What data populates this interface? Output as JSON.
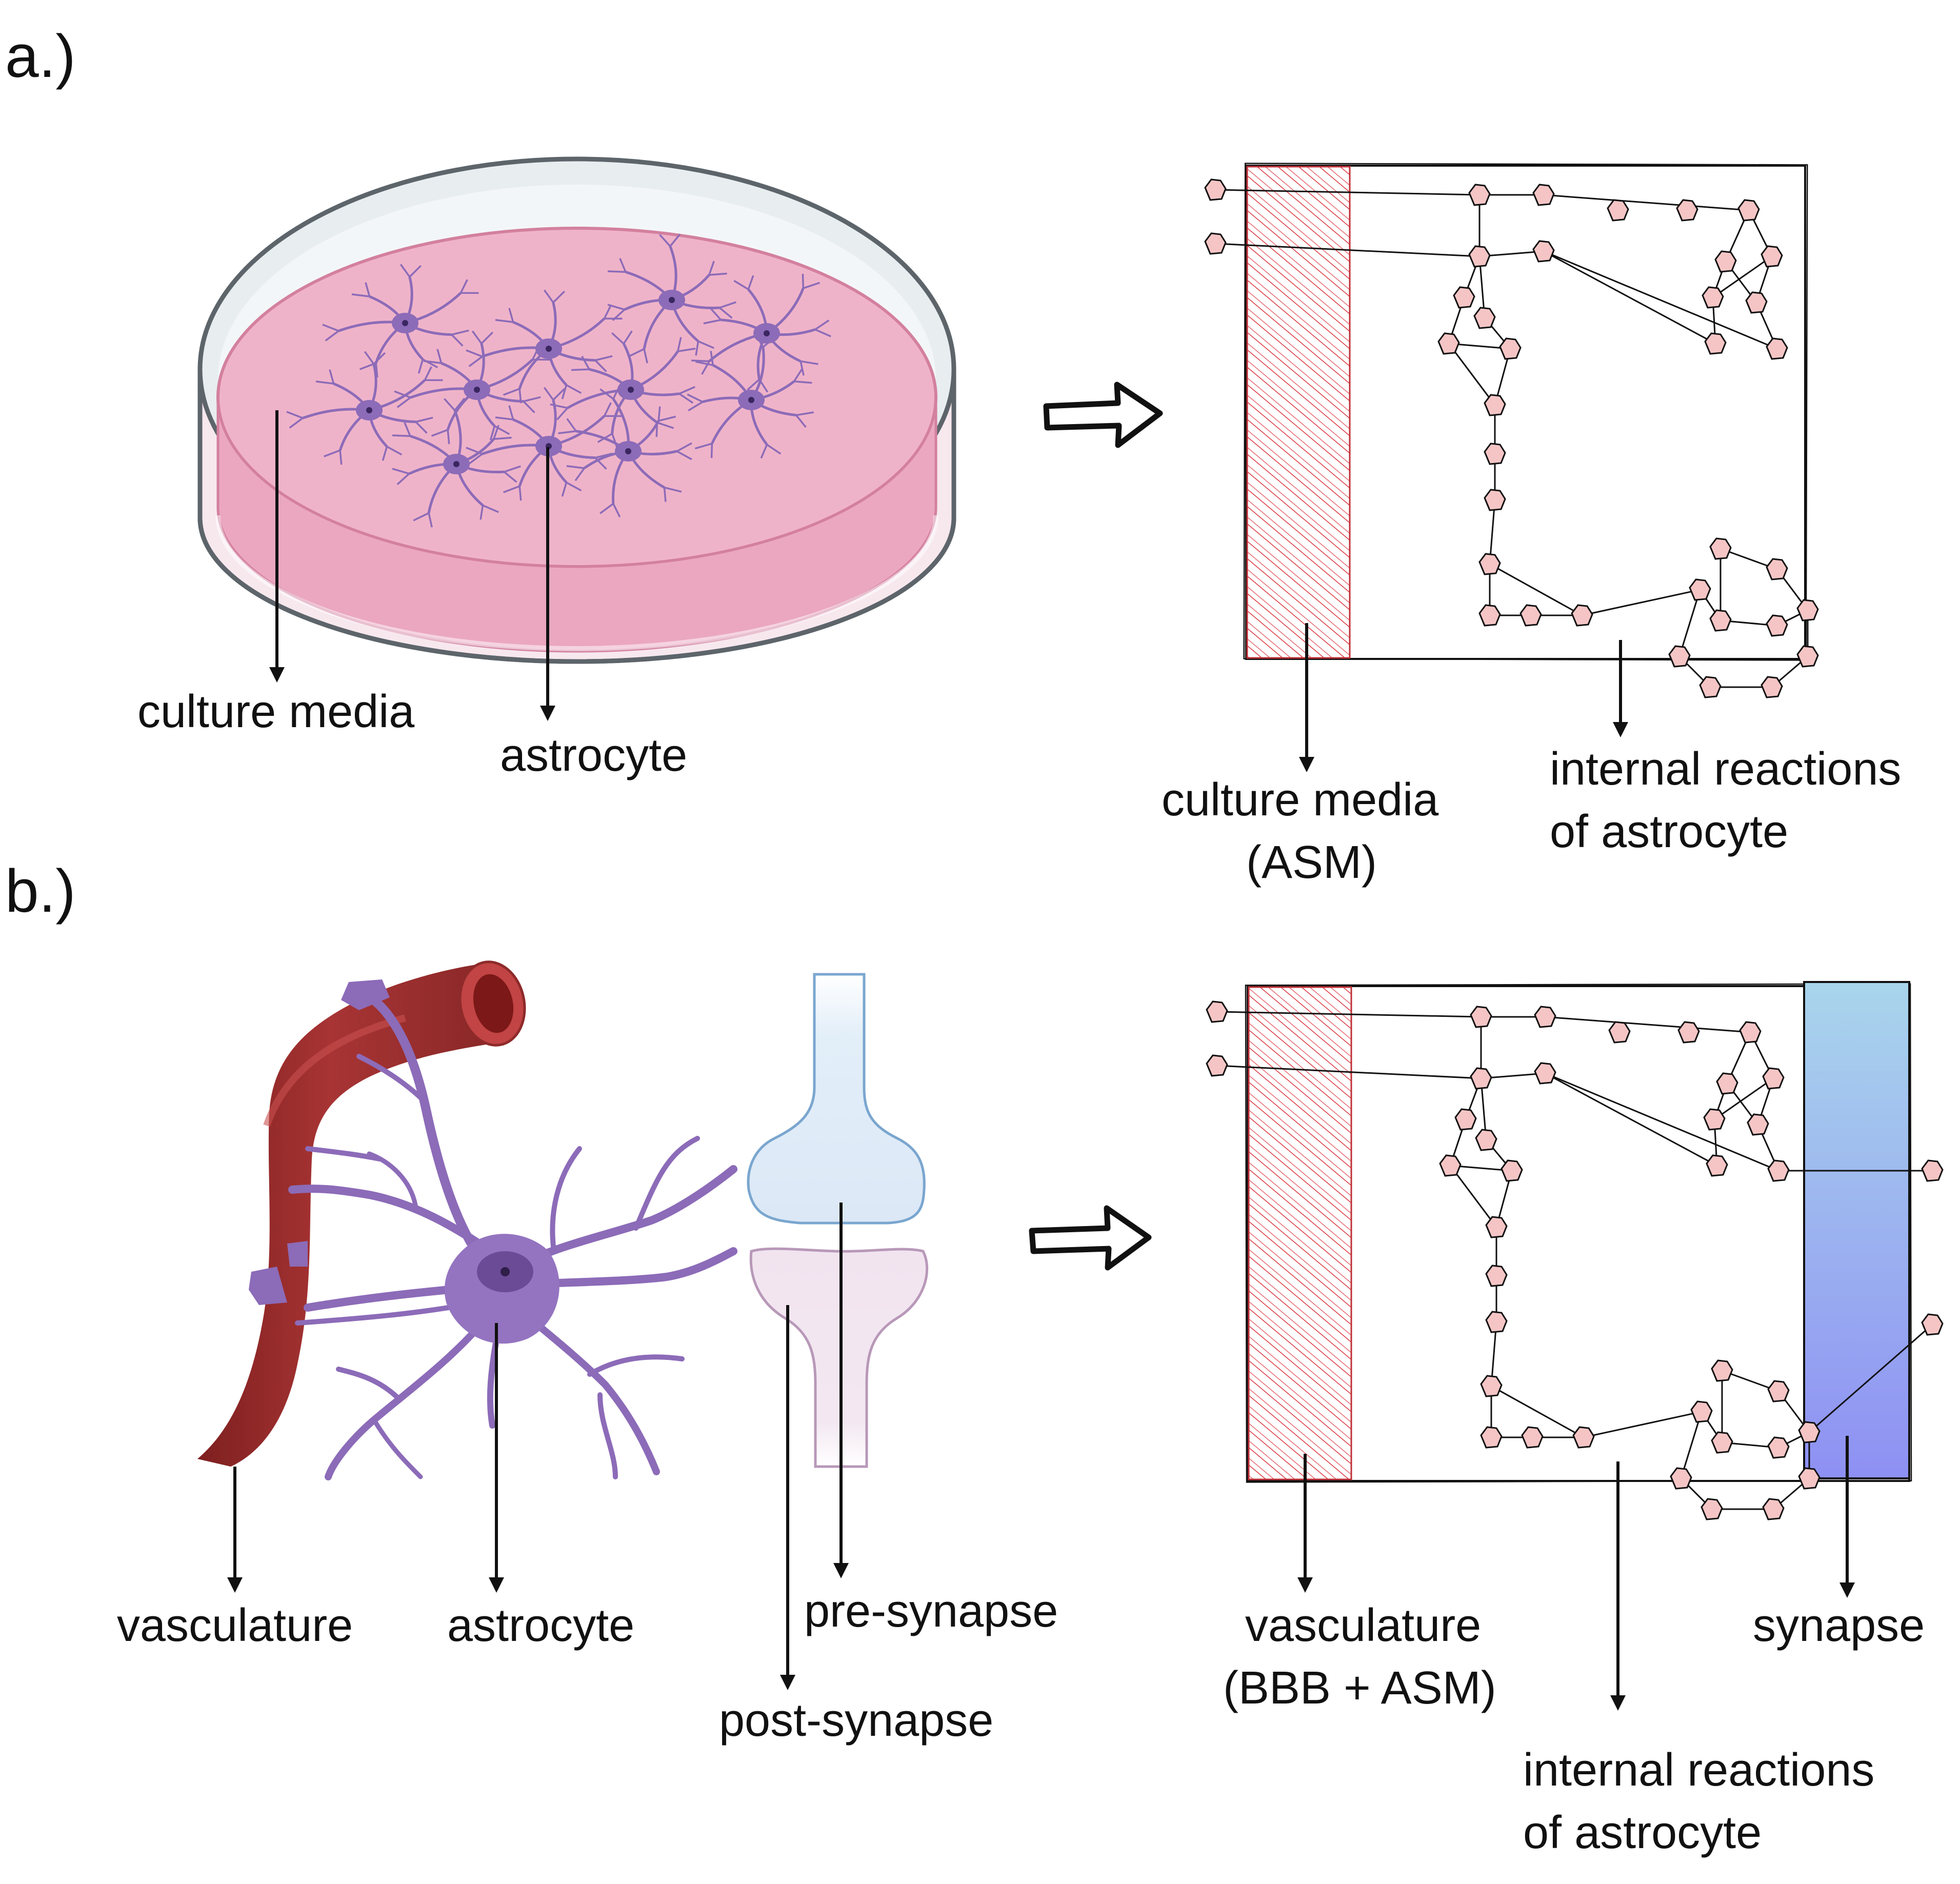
{
  "panel_a": {
    "letter": "a.)",
    "dish_labels": {
      "culture_media": "culture media",
      "astrocyte": "astrocyte"
    },
    "model_labels": {
      "culture_media_line1": "culture media",
      "culture_media_line2": "(ASM)",
      "internal_line1": "internal reactions",
      "internal_line2": "of astrocyte"
    }
  },
  "panel_b": {
    "letter": "b.)",
    "bio_labels": {
      "vasculature": "vasculature",
      "astrocyte": "astrocyte",
      "pre_synapse": "pre-synapse",
      "post_synapse": "post-synapse"
    },
    "model_labels": {
      "vasculature_line1": "vasculature",
      "vasculature_line2": "(BBB + ASM)",
      "synapse": "synapse",
      "internal_line1": "internal reactions",
      "internal_line2": "of astrocyte"
    }
  },
  "colors": {
    "culture_media_pink": "#f0aac4",
    "dish_rim": "#5d656b",
    "astrocyte_purple": "#8c6bb8",
    "hatch_red": "#d9363e",
    "vessel_red": "#9e2d2d",
    "synapse_top": "#a9d5ec",
    "synapse_bottom": "#8e90f3",
    "metabolite_pink": "#f5c5c5"
  },
  "icons": [
    "hollow-arrow-icon",
    "down-arrow-icon",
    "metabolite-node-icon"
  ]
}
